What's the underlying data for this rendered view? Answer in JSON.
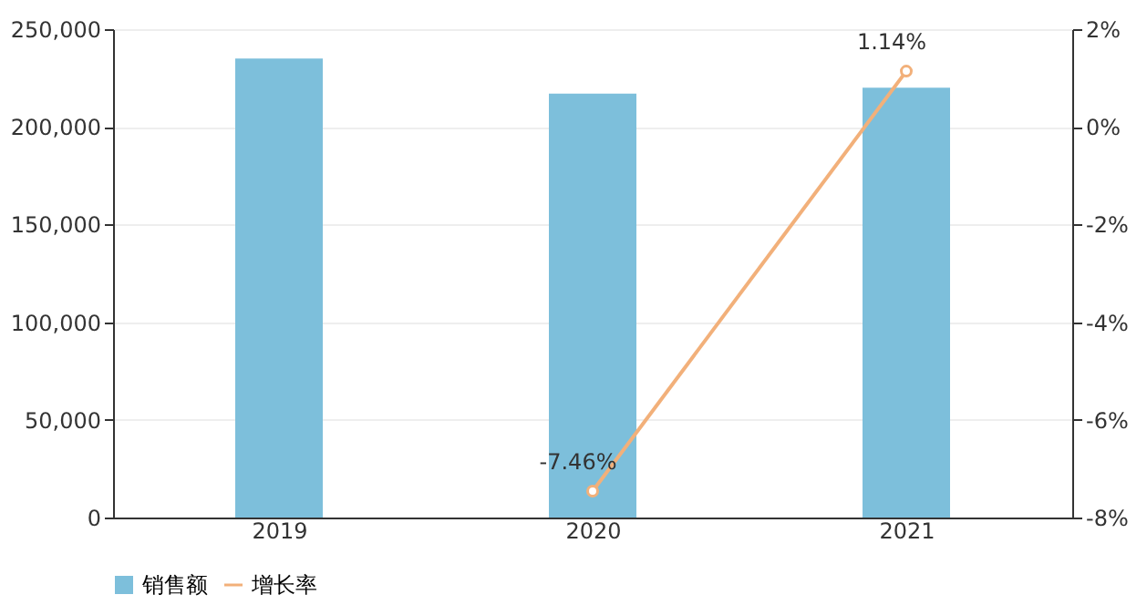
{
  "chart_data": {
    "type": "bar",
    "categories": [
      "2019",
      "2020",
      "2021"
    ],
    "series": [
      {
        "name": "销售额",
        "color": "#7dbfdb",
        "values": [
          235000,
          217000,
          220000
        ]
      },
      {
        "name": "增长率",
        "type": "line",
        "axis": "y2",
        "color": "#f2b07a",
        "values": [
          null,
          -7.46,
          1.14
        ],
        "value_labels": [
          null,
          "-7.46%",
          "1.14%"
        ]
      }
    ],
    "marker": "circle",
    "ylim": [
      0,
      250000
    ],
    "yticks": [
      0,
      {
        "value": 50000,
        "label": "50,000"
      },
      {
        "value": 100000,
        "label": "100,000"
      },
      {
        "value": 150000,
        "label": "150,000"
      },
      {
        "value": 200000,
        "label": "200,000"
      },
      {
        "value": 250000,
        "label": "250,000"
      }
    ],
    "y2lim": [
      -8,
      2
    ],
    "y2ticks": [
      {
        "value": -8,
        "label": "-8%"
      },
      {
        "value": -6,
        "label": "-6%"
      },
      {
        "value": -4,
        "label": "-4%"
      },
      {
        "value": -2,
        "label": "-2%"
      },
      {
        "value": 0,
        "label": "0%"
      },
      {
        "value": 2,
        "label": "2%"
      }
    ],
    "grid": "y",
    "legend": "bottom"
  }
}
